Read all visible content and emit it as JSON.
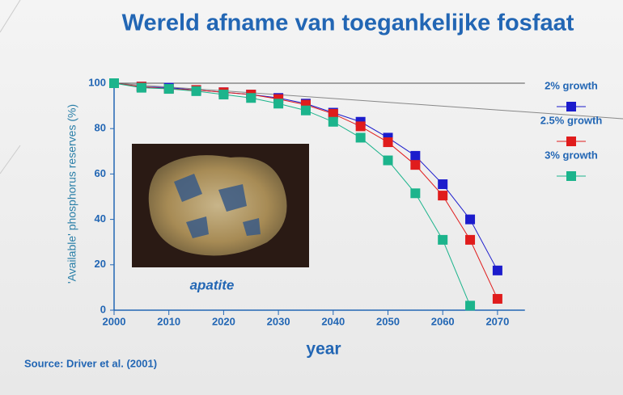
{
  "chart_data": {
    "type": "line",
    "title": "Wereld afname van toegankelijke fosfaat",
    "x_label": "year",
    "y_label": "'Available' phosphorus reserves (%)",
    "annotations": [
      "apatite"
    ],
    "source": "Source: Driver et al. (2001)",
    "x": [
      2000,
      2005,
      2010,
      2015,
      2020,
      2025,
      2030,
      2035,
      2040,
      2045,
      2050,
      2055,
      2060,
      2065,
      2070
    ],
    "series": [
      {
        "name": "2% growth",
        "color": "#1c1ccc",
        "values": [
          100,
          98.5,
          98,
          97,
          96,
          95,
          93.5,
          91,
          87,
          83,
          76,
          68,
          55.5,
          40,
          17.5
        ]
      },
      {
        "name": "2.5% growth",
        "color": "#e01c1c",
        "values": [
          100,
          98.5,
          97.5,
          97,
          96,
          95,
          93,
          90.5,
          86.5,
          81,
          74,
          64,
          50.5,
          31,
          5
        ]
      },
      {
        "name": "3% growth",
        "color": "#1cb48c",
        "values": [
          100,
          98,
          97.5,
          96.5,
          95,
          93.5,
          91,
          88,
          83,
          76,
          66,
          51.5,
          31,
          2,
          null
        ]
      }
    ],
    "xlim": [
      2000,
      2075
    ],
    "ylim": [
      0,
      100
    ],
    "xticks": [
      2000,
      2010,
      2020,
      2030,
      2040,
      2050,
      2060,
      2070
    ],
    "yticks": [
      0,
      20,
      40,
      60,
      80,
      100
    ]
  }
}
